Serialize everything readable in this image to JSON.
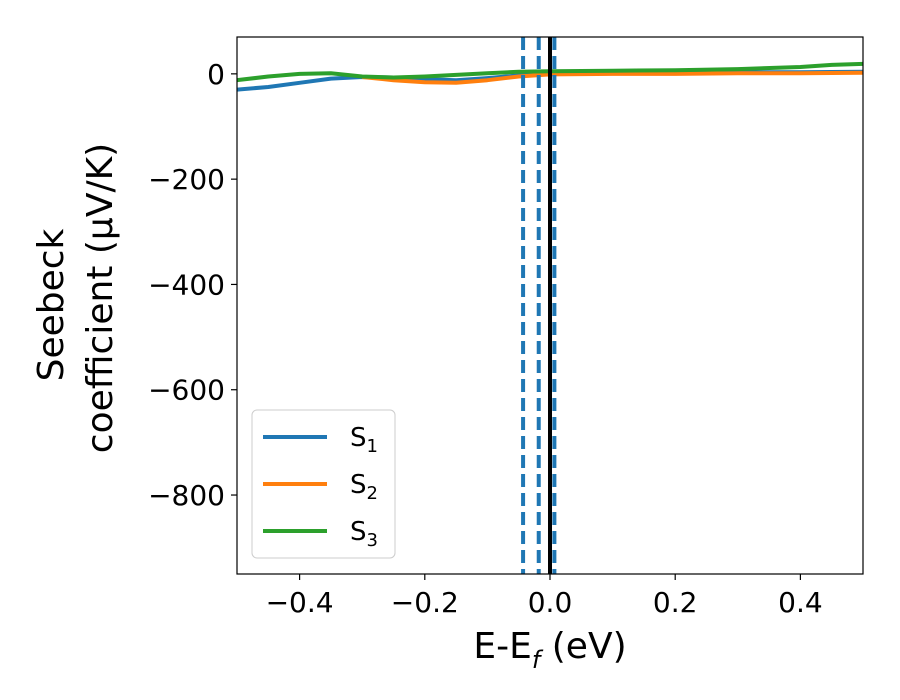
{
  "chart_data": {
    "type": "line",
    "xlabel_main": "E-E",
    "xlabel_sub": "f",
    "xlabel_unit": " (eV)",
    "ylabel_line1": "Seebeck",
    "ylabel_line2": "coefficient  (μV/K)",
    "xlim": [
      -0.5,
      0.5
    ],
    "ylim": [
      -950,
      70
    ],
    "x_ticks": [
      -0.4,
      -0.2,
      0.0,
      0.2,
      0.4
    ],
    "x_tick_labels": [
      "−0.4",
      "−0.2",
      "0.0",
      "0.2",
      "0.4"
    ],
    "y_ticks": [
      0,
      -200,
      -400,
      -600,
      -800
    ],
    "y_tick_labels": [
      "0",
      "−200",
      "−400",
      "−600",
      "−800"
    ],
    "grid": false,
    "legend_position": "bottom-left",
    "series": [
      {
        "name": "S",
        "subscript": "1",
        "color": "#1f77b4",
        "x": [
          -0.5,
          -0.45,
          -0.4,
          -0.35,
          -0.3,
          -0.25,
          -0.2,
          -0.15,
          -0.1,
          -0.05,
          0.0,
          0.1,
          0.2,
          0.3,
          0.4,
          0.5
        ],
        "y": [
          -30,
          -25,
          -17,
          -9,
          -6,
          -7,
          -10,
          -12,
          -8,
          -3,
          1,
          2,
          2,
          3,
          3,
          4
        ]
      },
      {
        "name": "S",
        "subscript": "2",
        "color": "#ff7f0e",
        "x": [
          -0.3,
          -0.25,
          -0.2,
          -0.15,
          -0.1,
          -0.05,
          0.0,
          0.1,
          0.2,
          0.3,
          0.4,
          0.5
        ],
        "y": [
          -6,
          -12,
          -16,
          -17,
          -12,
          -5,
          -1,
          0,
          0,
          1,
          1,
          2
        ]
      },
      {
        "name": "S",
        "subscript": "3",
        "color": "#2ca02c",
        "x": [
          -0.5,
          -0.45,
          -0.4,
          -0.35,
          -0.3,
          -0.25,
          -0.2,
          -0.15,
          -0.1,
          -0.05,
          0.0,
          0.1,
          0.2,
          0.3,
          0.4,
          0.45,
          0.5
        ],
        "y": [
          -12,
          -5,
          0,
          1,
          -5,
          -7,
          -5,
          -2,
          1,
          4,
          5,
          6,
          7,
          9,
          13,
          17,
          19
        ]
      }
    ],
    "vlines": [
      {
        "x": -0.043,
        "color": "#1f77b4",
        "style": "dashed"
      },
      {
        "x": -0.018,
        "color": "#1f77b4",
        "style": "dashed"
      },
      {
        "x": 0.007,
        "color": "#1f77b4",
        "style": "dashed"
      },
      {
        "x": 0.0,
        "color": "#000000",
        "style": "solid"
      }
    ]
  }
}
